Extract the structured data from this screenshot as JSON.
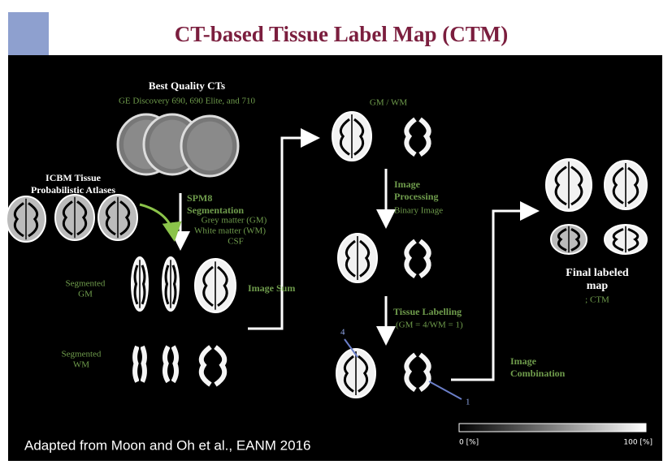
{
  "header": {
    "title": "CT-based Tissue Label Map (CTM)"
  },
  "labels": {
    "ct_title": "Best Quality CTs",
    "ct_subtitle": "GE Discovery 690, 690 Elite, and 710",
    "atlas": [
      "ICBM Tissue",
      "Probabilistic Atlases"
    ],
    "segmentation": [
      "SPM8",
      "Segmentation"
    ],
    "tissues": [
      "Grey matter (GM)",
      "White matter (WM)",
      "CSF"
    ],
    "segmented_gm": [
      "Segmented",
      "GM"
    ],
    "segmented_wm": [
      "Segmented",
      "WM"
    ],
    "image_sum": "Image Sum",
    "gm_wm": "GM / WM",
    "image_processing": [
      "Image",
      "Processing"
    ],
    "binary_image": "Binary Image",
    "tissue_labelling": "Tissue Labelling",
    "label_values": "(GM = 4/WM = 1)",
    "marker_gm": "4",
    "marker_wm": "1",
    "image_combination": [
      "Image",
      "Combination"
    ],
    "final": [
      "Final labeled",
      "map"
    ],
    "ctm": "; CTM",
    "colorbar_min": "0 [%]",
    "colorbar_max": "100 [%]"
  },
  "footer": {
    "source": "Adapted from Moon and Oh et al., EANM 2016"
  }
}
